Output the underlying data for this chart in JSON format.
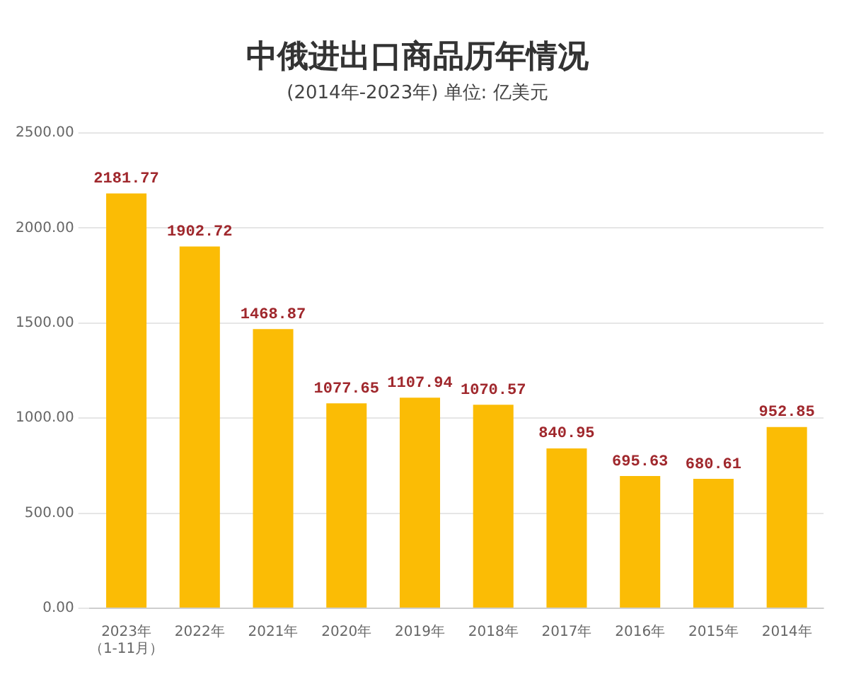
{
  "chart_data": {
    "type": "bar",
    "title": "中俄进出口商品历年情况",
    "subtitle": "(2014年-2023年) 单位: 亿美元",
    "categories": [
      "2023年（1-11月）",
      "2022年",
      "2021年",
      "2020年",
      "2019年",
      "2018年",
      "2017年",
      "2016年",
      "2015年",
      "2014年"
    ],
    "values": [
      2181.77,
      1902.72,
      1468.87,
      1077.65,
      1107.94,
      1070.57,
      840.95,
      695.63,
      680.61,
      952.85
    ],
    "color": "#fbbc05",
    "data_labels": true,
    "ylim": [
      0,
      2500
    ],
    "yticks": [
      {
        "value": 0,
        "label": "0.00"
      },
      {
        "value": 500,
        "label": "500.00"
      },
      {
        "value": 1000,
        "label": "1000.00"
      },
      {
        "value": 1500,
        "label": "1500.00"
      },
      {
        "value": 2000,
        "label": "2000.00"
      },
      {
        "value": 2500,
        "label": "2500.00"
      }
    ],
    "grid": "y"
  }
}
